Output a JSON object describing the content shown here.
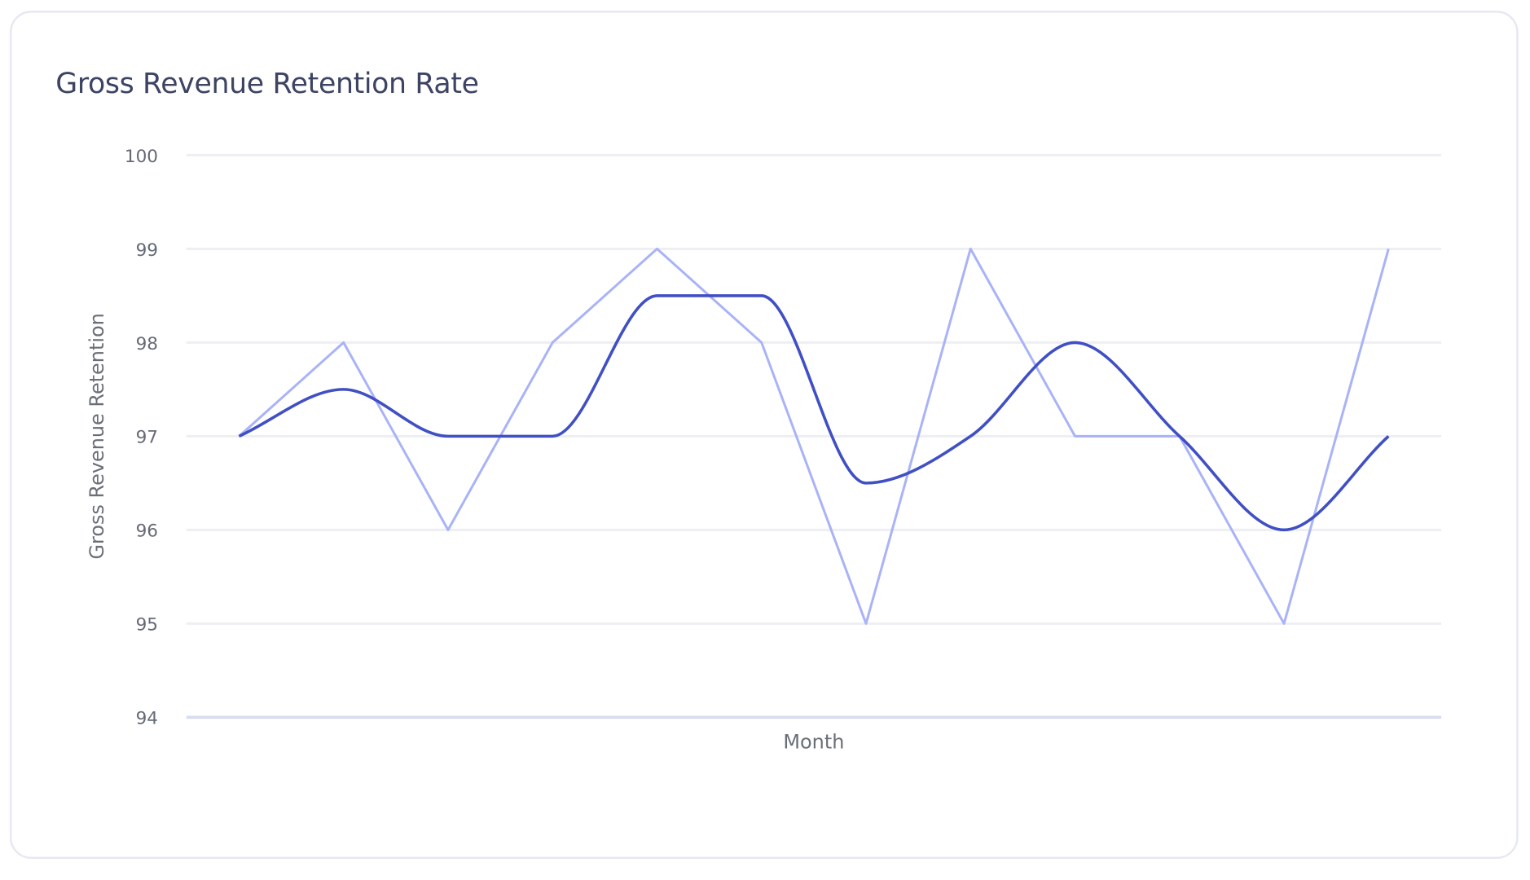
{
  "chart_data": {
    "type": "line",
    "title": "Gross Revenue Retention Rate",
    "xlabel": "Month",
    "ylabel": "Gross Revenue Retention",
    "ylim": [
      94,
      100
    ],
    "yticks": [
      "94",
      "95",
      "96",
      "97",
      "98",
      "99",
      "100"
    ],
    "grid": true,
    "x": [
      1,
      2,
      3,
      4,
      5,
      6,
      7,
      8,
      9,
      10,
      11,
      12
    ],
    "series": [
      {
        "values": [
          97,
          98,
          96,
          98,
          99,
          98,
          95,
          99,
          97,
          97,
          95,
          99
        ],
        "color": "#a9b3f7",
        "style": "straight"
      },
      {
        "values": [
          97,
          97.5,
          97,
          97,
          98.5,
          98.5,
          96.5,
          97,
          98,
          97,
          96,
          97
        ],
        "color": "#4050c4",
        "style": "smooth"
      }
    ]
  }
}
